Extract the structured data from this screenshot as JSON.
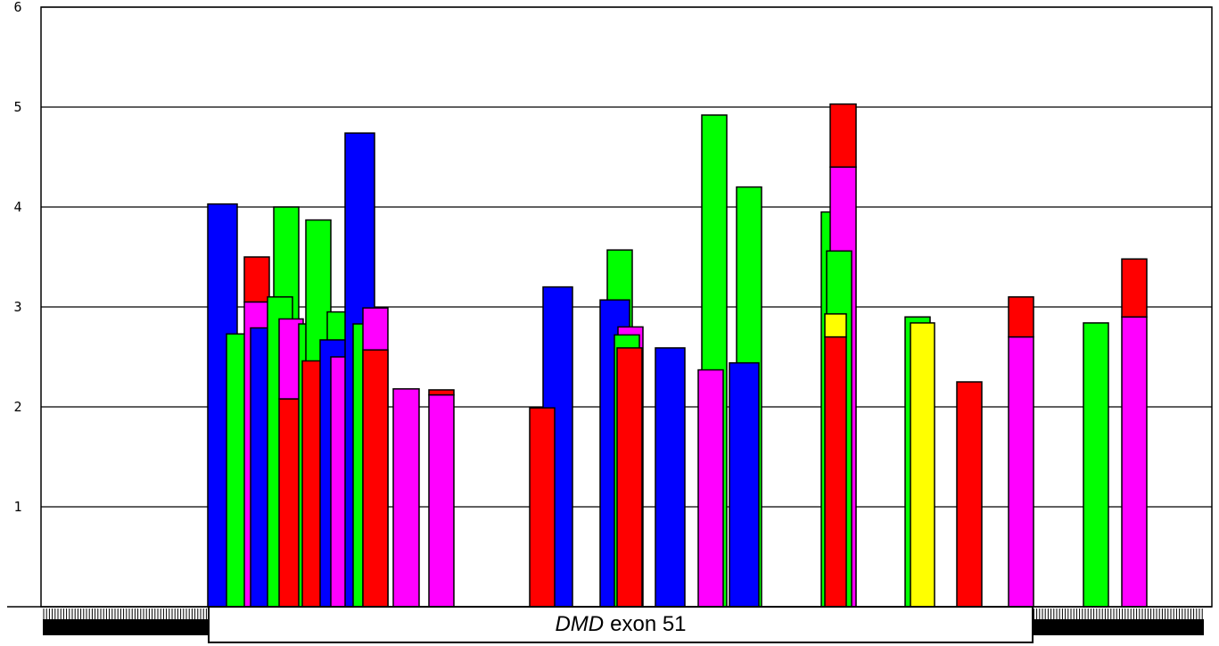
{
  "chart_data": {
    "type": "bar",
    "title": "",
    "xlabel": "",
    "ylabel": "",
    "ylim": [
      0,
      6
    ],
    "y_ticks": [
      "1",
      "2",
      "3",
      "4",
      "5",
      "6"
    ],
    "grid": true,
    "series_colors": {
      "blue": "#0000ff",
      "green": "#00ff00",
      "red": "#ff0000",
      "magenta": "#ff00ff",
      "yellow": "#ffff00"
    },
    "bars": [
      {
        "segments": [
          {
            "color": "blue",
            "to": 4.03
          }
        ]
      },
      {
        "segments": [
          {
            "color": "green",
            "to": 2.73
          }
        ]
      },
      {
        "segments": [
          {
            "color": "magenta",
            "to": 3.05
          },
          {
            "color": "red",
            "to": 3.5
          }
        ]
      },
      {
        "segments": [
          {
            "color": "blue",
            "to": 2.79
          }
        ]
      },
      {
        "segments": [
          {
            "color": "green",
            "to": 4.0
          }
        ]
      },
      {
        "segments": [
          {
            "color": "green",
            "to": 3.1
          }
        ]
      },
      {
        "segments": [
          {
            "color": "red",
            "to": 2.08
          },
          {
            "color": "magenta",
            "to": 2.88
          }
        ]
      },
      {
        "segments": [
          {
            "color": "green",
            "to": 2.83
          }
        ]
      },
      {
        "segments": [
          {
            "color": "green",
            "to": 3.87
          }
        ]
      },
      {
        "segments": [
          {
            "color": "red",
            "to": 2.46
          }
        ]
      },
      {
        "segments": [
          {
            "color": "green",
            "to": 2.95
          }
        ]
      },
      {
        "segments": [
          {
            "color": "blue",
            "to": 2.67
          }
        ]
      },
      {
        "segments": [
          {
            "color": "magenta",
            "to": 2.5
          }
        ]
      },
      {
        "segments": [
          {
            "color": "blue",
            "to": 4.74
          }
        ]
      },
      {
        "segments": [
          {
            "color": "green",
            "to": 2.83
          }
        ]
      },
      {
        "segments": [
          {
            "color": "magenta",
            "to": 2.99
          }
        ]
      },
      {
        "segments": [
          {
            "color": "red",
            "to": 2.57
          }
        ]
      },
      {
        "segments": [
          {
            "color": "magenta",
            "to": 2.18
          }
        ]
      },
      {
        "segments": [
          {
            "color": "magenta",
            "to": 2.12
          },
          {
            "color": "red",
            "to": 2.17
          }
        ]
      },
      {
        "segments": [
          {
            "color": "blue",
            "to": 3.2
          }
        ]
      },
      {
        "segments": [
          {
            "color": "red",
            "to": 1.99
          }
        ]
      },
      {
        "segments": [
          {
            "color": "green",
            "to": 3.57
          }
        ]
      },
      {
        "segments": [
          {
            "color": "blue",
            "to": 3.07
          }
        ]
      },
      {
        "segments": [
          {
            "color": "magenta",
            "to": 2.8
          }
        ]
      },
      {
        "segments": [
          {
            "color": "green",
            "to": 2.72
          }
        ]
      },
      {
        "segments": [
          {
            "color": "red",
            "to": 2.59
          }
        ]
      },
      {
        "segments": [
          {
            "color": "blue",
            "to": 2.59
          }
        ]
      },
      {
        "segments": [
          {
            "color": "green",
            "to": 4.92
          }
        ]
      },
      {
        "segments": [
          {
            "color": "magenta",
            "to": 2.37
          }
        ]
      },
      {
        "segments": [
          {
            "color": "green",
            "to": 4.2
          }
        ]
      },
      {
        "segments": [
          {
            "color": "blue",
            "to": 2.44
          }
        ]
      },
      {
        "segments": [
          {
            "color": "green",
            "to": 3.95
          }
        ]
      },
      {
        "segments": [
          {
            "color": "magenta",
            "to": 4.4
          },
          {
            "color": "red",
            "to": 5.03
          }
        ]
      },
      {
        "segments": [
          {
            "color": "green",
            "to": 3.56
          }
        ]
      },
      {
        "segments": [
          {
            "color": "red",
            "to": 2.7
          },
          {
            "color": "yellow",
            "to": 2.93
          }
        ]
      },
      {
        "segments": [
          {
            "color": "green",
            "to": 2.9
          }
        ]
      },
      {
        "segments": [
          {
            "color": "yellow",
            "to": 2.84
          }
        ]
      },
      {
        "segments": [
          {
            "color": "red",
            "to": 2.25
          }
        ]
      },
      {
        "segments": [
          {
            "color": "magenta",
            "to": 2.7
          },
          {
            "color": "red",
            "to": 3.1
          }
        ]
      },
      {
        "segments": [
          {
            "color": "green",
            "to": 2.84
          }
        ]
      },
      {
        "segments": [
          {
            "color": "magenta",
            "to": 2.9
          },
          {
            "color": "red",
            "to": 3.48
          }
        ]
      }
    ],
    "annotation": {
      "gene": "DMD",
      "text": "exon 51"
    }
  }
}
